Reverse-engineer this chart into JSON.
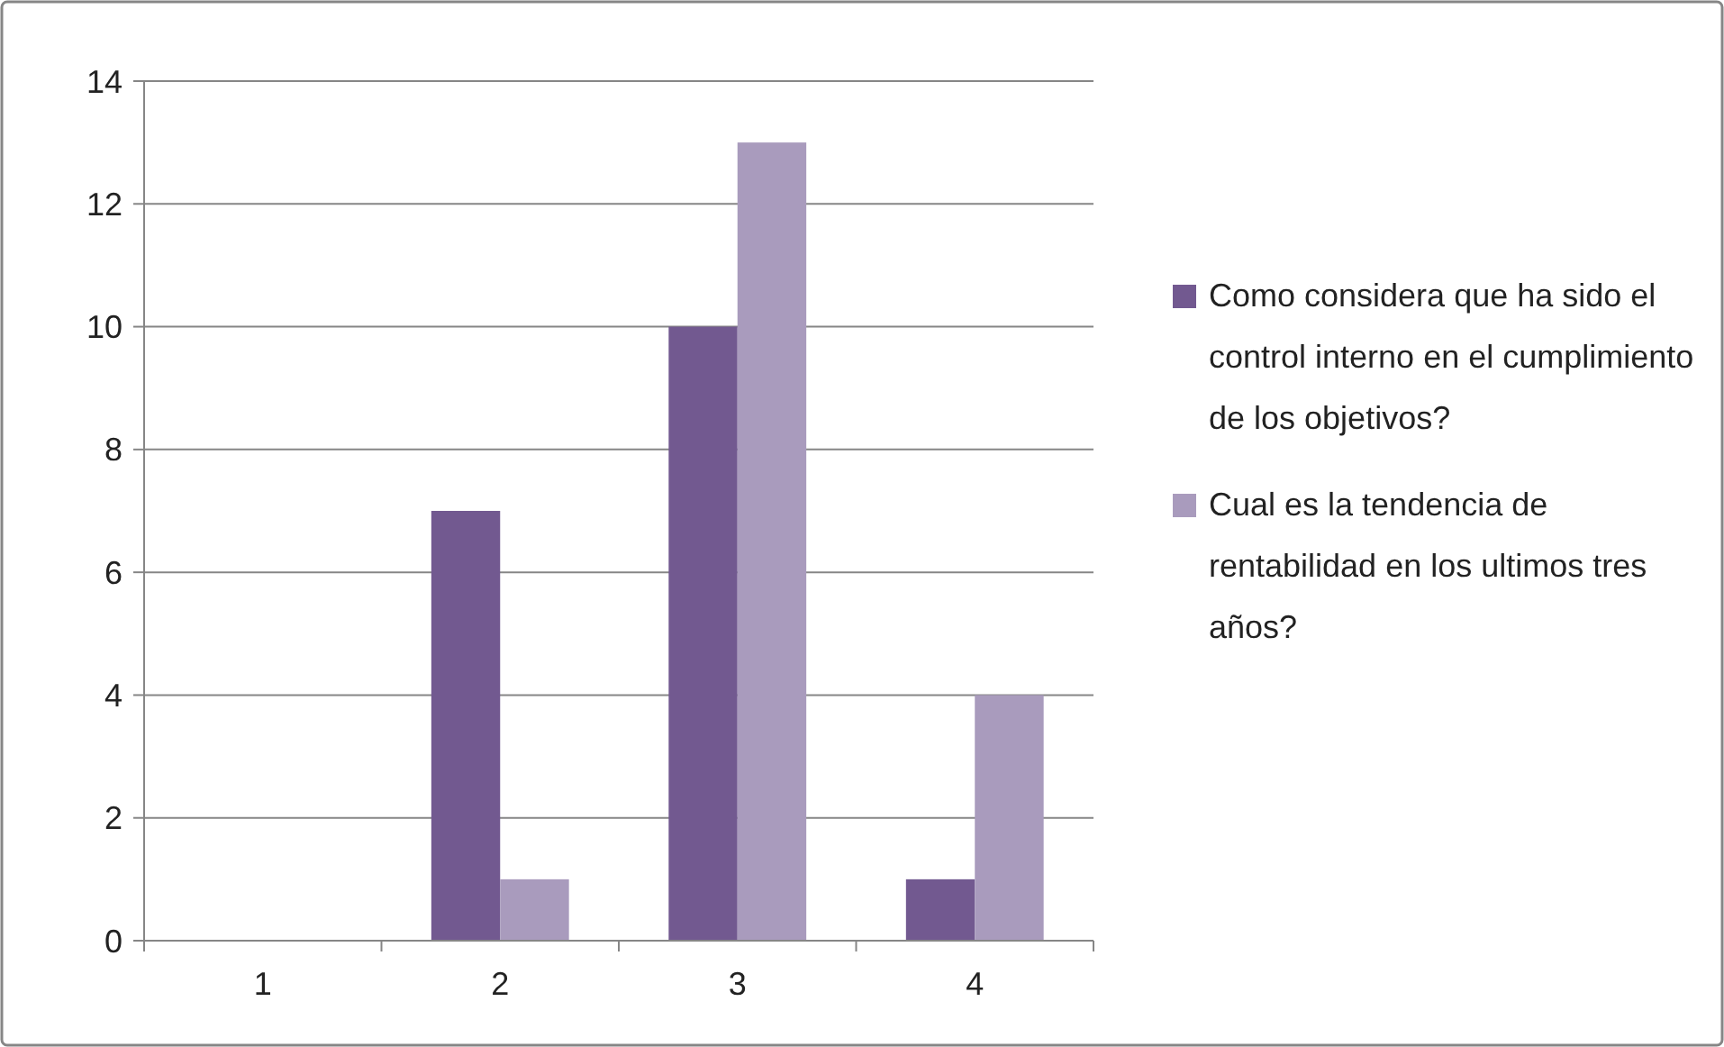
{
  "chart_data": {
    "type": "bar",
    "categories": [
      "1",
      "2",
      "3",
      "4"
    ],
    "series": [
      {
        "name": "Como considera que ha sido el control interno en el  cumplimiento de los objetivos?",
        "color": "#725990",
        "values": [
          0,
          7,
          10,
          1
        ]
      },
      {
        "name": "Cual es la tendencia de rentabilidad en los ultimos tres años?",
        "color": "#a99bbd",
        "values": [
          0,
          1,
          13,
          4
        ]
      }
    ],
    "ylim": [
      0,
      14
    ],
    "yticks": [
      0,
      2,
      4,
      6,
      8,
      10,
      12,
      14
    ],
    "grid": "y",
    "legend": "right"
  }
}
